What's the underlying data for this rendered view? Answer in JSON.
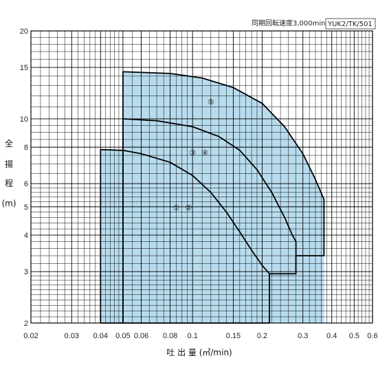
{
  "header": {
    "speed_text": "同期回転速度3,000min⁻¹",
    "model_text": "YUK2/TK/501"
  },
  "chart_data": {
    "type": "area",
    "xscale": "log",
    "yscale": "log",
    "xlabel": "吐 出 量 (㎥/min)",
    "ylabel_chars": [
      "全",
      "揚",
      "程",
      "(m)"
    ],
    "xlim": [
      0.02,
      0.6
    ],
    "ylim": [
      2,
      20
    ],
    "x_ticks": [
      {
        "v": 0.02,
        "label": "0.02"
      },
      {
        "v": 0.03,
        "label": "0.03"
      },
      {
        "v": 0.04,
        "label": "0.04"
      },
      {
        "v": 0.05,
        "label": "0.05"
      },
      {
        "v": 0.06,
        "label": "0.06"
      },
      {
        "v": 0.08,
        "label": "0.08"
      },
      {
        "v": 0.1,
        "label": "0.1"
      },
      {
        "v": 0.15,
        "label": "0.15"
      },
      {
        "v": 0.2,
        "label": "0.2"
      },
      {
        "v": 0.3,
        "label": "0.3"
      },
      {
        "v": 0.4,
        "label": "0.4"
      },
      {
        "v": 0.5,
        "label": "0.5"
      },
      {
        "v": 0.6,
        "label": "0.6"
      }
    ],
    "y_ticks": [
      {
        "v": 2,
        "label": "2"
      },
      {
        "v": 3,
        "label": "3"
      },
      {
        "v": 4,
        "label": "4"
      },
      {
        "v": 5,
        "label": "5"
      },
      {
        "v": 6,
        "label": "6"
      },
      {
        "v": 8,
        "label": "8"
      },
      {
        "v": 10,
        "label": "10"
      },
      {
        "v": 15,
        "label": "15"
      },
      {
        "v": 20,
        "label": "20"
      }
    ],
    "grid": true,
    "grid_x": [
      0.02,
      0.022,
      0.024,
      0.026,
      0.028,
      0.03,
      0.032,
      0.034,
      0.036,
      0.038,
      0.04,
      0.042,
      0.044,
      0.046,
      0.048,
      0.05,
      0.055,
      0.06,
      0.065,
      0.07,
      0.075,
      0.08,
      0.085,
      0.09,
      0.095,
      0.1,
      0.11,
      0.12,
      0.13,
      0.14,
      0.15,
      0.16,
      0.17,
      0.18,
      0.19,
      0.2,
      0.22,
      0.24,
      0.26,
      0.28,
      0.3,
      0.32,
      0.34,
      0.36,
      0.38,
      0.4,
      0.42,
      0.44,
      0.46,
      0.48,
      0.5,
      0.52,
      0.54,
      0.56,
      0.58,
      0.6
    ],
    "grid_y": [
      2,
      2.1,
      2.2,
      2.3,
      2.4,
      2.5,
      2.6,
      2.7,
      2.8,
      2.9,
      3,
      3.2,
      3.4,
      3.6,
      3.8,
      4,
      4.2,
      4.4,
      4.6,
      4.8,
      5,
      5.2,
      5.4,
      5.6,
      5.8,
      6,
      6.5,
      7,
      7.5,
      8,
      8.5,
      9,
      9.5,
      10,
      11,
      12,
      13,
      14,
      15,
      16,
      17,
      18,
      19,
      20
    ],
    "regions": [
      {
        "name": "①②",
        "labels": [
          "①",
          "②"
        ],
        "label_at": [
          0.085,
          5.0
        ],
        "fill": "#b8dcee",
        "left_x": 0.04,
        "base_y": 2,
        "curve": [
          [
            0.04,
            7.85
          ],
          [
            0.05,
            7.8
          ],
          [
            0.06,
            7.6
          ],
          [
            0.08,
            7.1
          ],
          [
            0.1,
            6.4
          ],
          [
            0.12,
            5.6
          ],
          [
            0.14,
            4.8
          ],
          [
            0.16,
            4.1
          ],
          [
            0.18,
            3.55
          ],
          [
            0.2,
            3.15
          ],
          [
            0.215,
            2.95
          ]
        ]
      },
      {
        "name": "③④",
        "labels": [
          "③",
          "④"
        ],
        "label_at": [
          0.1,
          7.7
        ],
        "fill": "#b8dcee",
        "left_x": 0.05,
        "base_y": 2,
        "curve": [
          [
            0.05,
            10.0
          ],
          [
            0.07,
            9.85
          ],
          [
            0.1,
            9.4
          ],
          [
            0.13,
            8.7
          ],
          [
            0.16,
            7.8
          ],
          [
            0.19,
            6.7
          ],
          [
            0.22,
            5.6
          ],
          [
            0.25,
            4.6
          ],
          [
            0.27,
            4.0
          ],
          [
            0.28,
            3.8
          ]
        ],
        "step": [
          [
            0.28,
            2.95
          ],
          [
            0.215,
            2.95
          ]
        ]
      },
      {
        "name": "⑤",
        "labels": [
          "⑤"
        ],
        "label_at": [
          0.12,
          11.5
        ],
        "fill": "#b8dcee",
        "left_x": 0.05,
        "base_y": 2,
        "curve": [
          [
            0.05,
            14.5
          ],
          [
            0.08,
            14.3
          ],
          [
            0.11,
            13.8
          ],
          [
            0.15,
            12.8
          ],
          [
            0.2,
            11.3
          ],
          [
            0.25,
            9.4
          ],
          [
            0.3,
            7.6
          ],
          [
            0.34,
            6.2
          ],
          [
            0.37,
            5.3
          ]
        ],
        "step": [
          [
            0.37,
            3.4
          ],
          [
            0.28,
            3.4
          ],
          [
            0.28,
            2.95
          ]
        ]
      }
    ]
  }
}
